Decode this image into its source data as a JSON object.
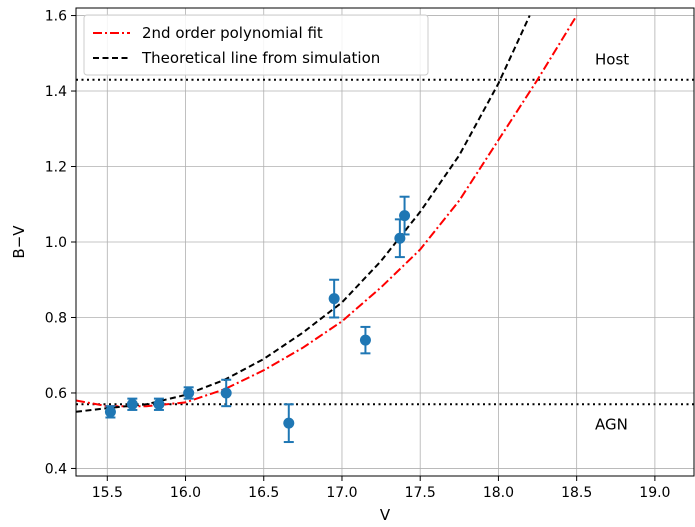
{
  "chart_data": {
    "type": "scatter",
    "title": "",
    "xlabel": "V",
    "ylabel": "B−V",
    "xlim": [
      15.3,
      19.25
    ],
    "ylim": [
      0.38,
      1.62
    ],
    "grid": true,
    "legend_position": "top-left",
    "xticks": [
      15.5,
      16.0,
      16.5,
      17.0,
      17.5,
      18.0,
      18.5,
      19.0
    ],
    "xtick_labels": [
      "15.5",
      "16.0",
      "16.5",
      "17.0",
      "17.5",
      "18.0",
      "18.5",
      "19.0"
    ],
    "yticks": [
      0.4,
      0.6,
      0.8,
      1.0,
      1.2,
      1.4,
      1.6
    ],
    "ytick_labels": [
      "0.4",
      "0.6",
      "0.8",
      "1.0",
      "1.2",
      "1.4",
      "1.6"
    ],
    "points": {
      "color": "#1f77b4",
      "x": [
        15.52,
        15.66,
        15.83,
        16.02,
        16.26,
        16.66,
        16.95,
        17.15,
        17.37,
        17.4
      ],
      "y": [
        0.55,
        0.57,
        0.57,
        0.6,
        0.6,
        0.52,
        0.85,
        0.74,
        1.01,
        1.07
      ],
      "yerr": [
        0.015,
        0.015,
        0.015,
        0.015,
        0.035,
        0.05,
        0.05,
        0.035,
        0.05,
        0.05
      ]
    },
    "series": [
      {
        "name": "2nd order polynomial fit",
        "color": "#ff0000",
        "style": "dashdot",
        "x": [
          15.3,
          15.5,
          15.75,
          16.0,
          16.25,
          16.5,
          16.75,
          17.0,
          17.25,
          17.5,
          17.75,
          18.0,
          18.25,
          18.5
        ],
        "y": [
          0.58,
          0.565,
          0.565,
          0.575,
          0.61,
          0.66,
          0.72,
          0.79,
          0.88,
          0.98,
          1.11,
          1.27,
          1.43,
          1.6
        ]
      },
      {
        "name": "Theoretical line from simulation",
        "color": "#000000",
        "style": "dashed",
        "x": [
          15.3,
          15.5,
          15.75,
          16.0,
          16.25,
          16.5,
          16.75,
          17.0,
          17.25,
          17.5,
          17.75,
          18.0,
          18.1,
          18.2
        ],
        "y": [
          0.55,
          0.56,
          0.57,
          0.595,
          0.635,
          0.69,
          0.76,
          0.84,
          0.95,
          1.08,
          1.23,
          1.42,
          1.51,
          1.6
        ]
      }
    ],
    "reference_lines": [
      {
        "label": "Host",
        "y": 1.43
      },
      {
        "label": "AGN",
        "y": 0.57
      }
    ]
  }
}
